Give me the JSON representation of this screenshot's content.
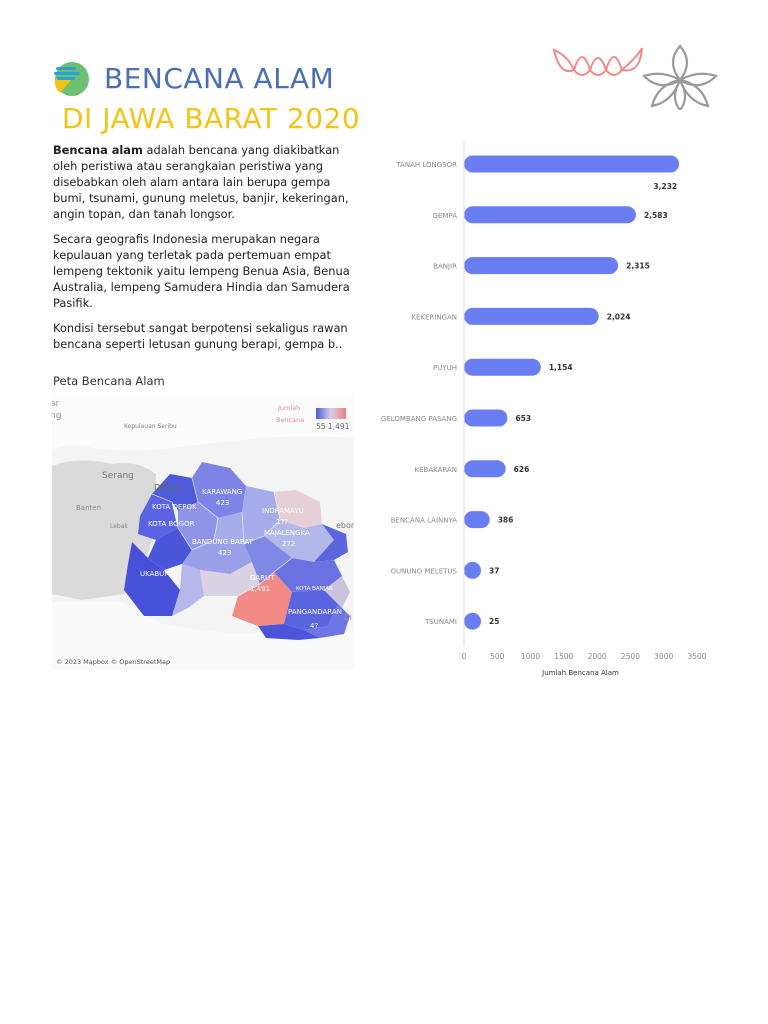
{
  "header": {
    "title_line1": "BENCANA ALAM",
    "title_line2": "DI JAWA BARAT 2020",
    "title_line1_color": "#4a6fb3",
    "title_line2_color": "#f2c418"
  },
  "intro": {
    "p1_bold": "Bencana alam",
    "p1_rest": " adalah bencana yang diakibatkan oleh peristiwa atau serangkaian peristiwa yang disebabkan oleh alam antara lain berupa gempa bumi, tsunami, gunung meletus, banjir, kekeringan, angin topan, dan tanah longsor.",
    "p2": "Secara geografis Indonesia merupakan negara kepulauan yang terletak pada pertemuan empat lempeng tektonik yaitu lempeng Benua Asia, Benua Australia, lempeng Samudera Hindia dan Samudera Pasifik.",
    "p3": "Kondisi tersebut sangat berpotensi sekaligus rawan bencana seperti letusan gunung berapi, gempa b.."
  },
  "map": {
    "title": "Peta Bencana Alam",
    "legend_title_line1": "Jumlah",
    "legend_title_line2": "Bencana",
    "legend_min": "55",
    "legend_max": "1,491",
    "legend_low_color": "#4a5bd6",
    "legend_high_color": "#f07f7f",
    "attribution": "© 2023 Mapbox © OpenStreetMap",
    "base_labels": {
      "ar": "ar",
      "ng": "ng",
      "kep_seribu": "Kepulauan Seribu",
      "serang": "Serang",
      "dki": "DKI Jak",
      "banten": "Banten",
      "lebak": "Lebak",
      "cirebon": "ebon",
      "ci": "Ci"
    },
    "region_labels": {
      "karawang": "KARAWANG",
      "karawang_val": "423",
      "kota_depok": "KOTA DEPOK",
      "kota_bogor": "KOTA BOGOR",
      "indramayu": "INDRAMAYU",
      "indramayu_val": "1??",
      "bandung_barat": "BANDUNG BARAT",
      "bandung_barat_val": "423",
      "majalengka": "MAJALENGKA",
      "majalengka_val": "272",
      "sukabumi": "UKABUMI",
      "garut": "GARUT",
      "garut_val": "1,491",
      "kota_banjar": "KOTA BANJAR",
      "pangandaran": "PANGANDARAN",
      "pangandaran_val": "4?"
    }
  },
  "chart_data": {
    "type": "bar",
    "orientation": "horizontal",
    "categories": [
      "TANAH LONGSOR",
      "GEMPA",
      "BANJIR",
      "KEKERINGAN",
      "PUYUH",
      "GELOMBANG PASANG",
      "KEBAKARAN",
      "BENCANA LAINNYA",
      "GUNUNG MELETUS",
      "TSUNAMI"
    ],
    "values": [
      3232,
      2583,
      2315,
      2024,
      1154,
      653,
      626,
      386,
      37,
      25
    ],
    "value_labels": [
      "3,232",
      "2,583",
      "2,315",
      "2,024",
      "1,154",
      "653",
      "626",
      "386",
      "37",
      "25"
    ],
    "xlabel": "Jumlah Bencana Alam",
    "ylabel": "",
    "xlim": [
      0,
      3500
    ],
    "xticks": [
      0,
      500,
      1000,
      1500,
      2000,
      2500,
      3000,
      3500
    ],
    "xtick_labels": [
      "0",
      "500",
      "1000",
      "1500",
      "2000",
      "2500",
      "3000",
      "3500"
    ],
    "bar_color": "#6a7ef4",
    "grid": false
  }
}
